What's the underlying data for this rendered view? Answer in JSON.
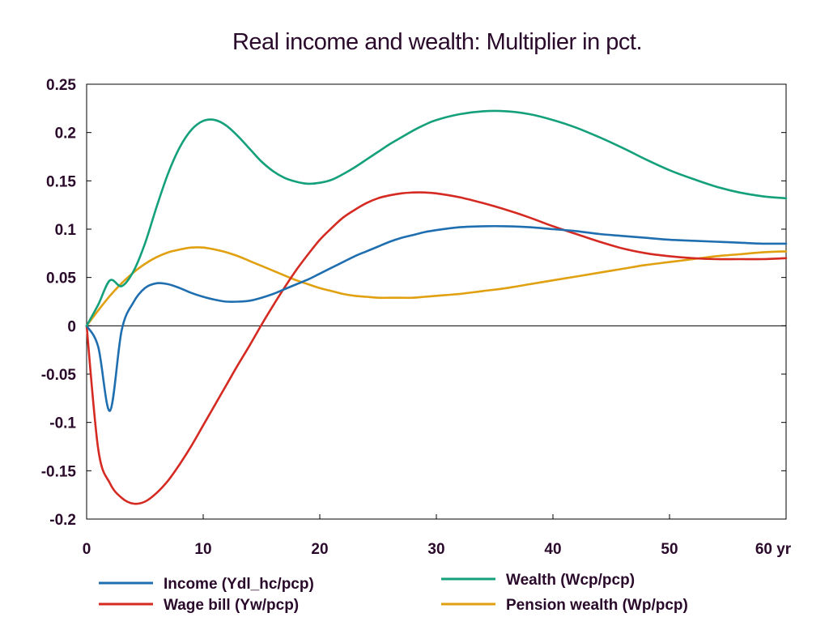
{
  "chart_data": {
    "type": "line",
    "title": "Real income and wealth: Multiplier in pct.",
    "x_unit_label": "yr",
    "xlim": [
      0,
      60
    ],
    "ylim": [
      -0.2,
      0.25
    ],
    "x_ticks": [
      "0",
      "10",
      "20",
      "30",
      "40",
      "50",
      "60 yr"
    ],
    "y_ticks": [
      "0.25",
      "0.2",
      "0.15",
      "0.1",
      "0.05",
      "0",
      "-0.05",
      "-0.1",
      "-0.15",
      "-0.2"
    ],
    "grid": false,
    "zero_line": true,
    "legend_position": "bottom",
    "x": [
      0,
      1,
      2,
      3,
      4,
      5,
      6,
      7,
      8,
      9,
      10,
      11,
      12,
      13,
      14,
      15,
      16,
      17,
      18,
      19,
      20,
      21,
      22,
      23,
      24,
      25,
      26,
      27,
      28,
      29,
      30,
      32,
      34,
      36,
      38,
      40,
      42,
      44,
      46,
      48,
      50,
      52,
      54,
      56,
      58,
      60
    ],
    "series": [
      {
        "name": "Income (Ydl_hc/pcp)",
        "color": "#1f6fb0",
        "values": [
          0,
          -0.022,
          -0.088,
          -0.005,
          0.024,
          0.039,
          0.044,
          0.043,
          0.039,
          0.034,
          0.03,
          0.027,
          0.025,
          0.025,
          0.026,
          0.029,
          0.033,
          0.038,
          0.043,
          0.048,
          0.054,
          0.06,
          0.066,
          0.072,
          0.077,
          0.082,
          0.087,
          0.091,
          0.094,
          0.097,
          0.099,
          0.102,
          0.103,
          0.103,
          0.102,
          0.1,
          0.098,
          0.095,
          0.093,
          0.091,
          0.089,
          0.088,
          0.087,
          0.086,
          0.085,
          0.085
        ]
      },
      {
        "name": "Wealth (Wcp/pcp)",
        "color": "#14a07a",
        "values": [
          0,
          0.022,
          0.047,
          0.041,
          0.056,
          0.085,
          0.123,
          0.158,
          0.185,
          0.203,
          0.212,
          0.213,
          0.207,
          0.196,
          0.183,
          0.17,
          0.16,
          0.153,
          0.149,
          0.147,
          0.148,
          0.151,
          0.157,
          0.164,
          0.172,
          0.18,
          0.188,
          0.195,
          0.202,
          0.208,
          0.213,
          0.219,
          0.222,
          0.222,
          0.219,
          0.213,
          0.205,
          0.195,
          0.184,
          0.172,
          0.161,
          0.152,
          0.144,
          0.138,
          0.134,
          0.132
        ]
      },
      {
        "name": "Wage bill (Yw/pcp)",
        "color": "#d42a22",
        "values": [
          0,
          -0.128,
          -0.163,
          -0.178,
          -0.184,
          -0.182,
          -0.173,
          -0.16,
          -0.143,
          -0.124,
          -0.103,
          -0.082,
          -0.061,
          -0.04,
          -0.02,
          0.001,
          0.021,
          0.04,
          0.058,
          0.074,
          0.089,
          0.101,
          0.112,
          0.12,
          0.127,
          0.132,
          0.135,
          0.137,
          0.138,
          0.138,
          0.137,
          0.133,
          0.127,
          0.12,
          0.112,
          0.103,
          0.095,
          0.087,
          0.08,
          0.075,
          0.072,
          0.07,
          0.069,
          0.069,
          0.069,
          0.07
        ]
      },
      {
        "name": "Pension wealth (Wp/pcp)",
        "color": "#e0a010",
        "values": [
          0,
          0.016,
          0.031,
          0.044,
          0.055,
          0.064,
          0.071,
          0.076,
          0.079,
          0.081,
          0.081,
          0.079,
          0.076,
          0.072,
          0.067,
          0.062,
          0.057,
          0.052,
          0.047,
          0.043,
          0.039,
          0.036,
          0.033,
          0.031,
          0.03,
          0.029,
          0.029,
          0.029,
          0.029,
          0.03,
          0.031,
          0.033,
          0.036,
          0.039,
          0.043,
          0.047,
          0.051,
          0.055,
          0.059,
          0.063,
          0.066,
          0.069,
          0.072,
          0.074,
          0.076,
          0.077
        ]
      }
    ]
  }
}
